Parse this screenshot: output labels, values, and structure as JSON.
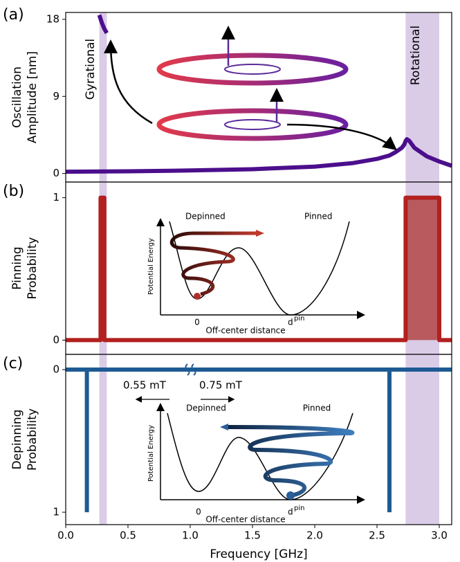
{
  "chart_data": [
    {
      "type": "line",
      "panel_label": "(a)",
      "ylabel": [
        "Oscillation",
        "Amplitude [nm]"
      ],
      "xlim": [
        0,
        3.1
      ],
      "ylim": [
        -1,
        18.8
      ],
      "yticks": [
        0,
        9,
        18
      ],
      "shaded": [
        [
          0.27,
          0.33
        ],
        [
          2.73,
          3.0
        ]
      ],
      "shade_color": "#d6c6e4",
      "annotations": [
        "Gyrational",
        "Rotational"
      ],
      "series": [
        {
          "color": "#4b0f8c",
          "x": [
            0,
            0.5,
            1.0,
            1.5,
            2.0,
            2.3,
            2.5,
            2.6,
            2.65,
            2.7,
            2.72,
            2.73,
            2.74,
            2.76,
            2.8,
            2.9,
            3.0,
            3.1
          ],
          "values": [
            0.2,
            0.25,
            0.35,
            0.5,
            0.8,
            1.2,
            1.7,
            2.1,
            2.5,
            3.0,
            3.4,
            3.8,
            4.0,
            3.8,
            3.0,
            2.0,
            1.4,
            0.9
          ]
        },
        {
          "color": "#4b0f8c",
          "x": [
            0.27,
            0.29,
            0.31,
            0.33
          ],
          "values": [
            18.5,
            17.6,
            16.9,
            16.4
          ]
        }
      ]
    },
    {
      "type": "line",
      "panel_label": "(b)",
      "ylabel": [
        "Pinning",
        "Probability"
      ],
      "xlim": [
        0,
        3.1
      ],
      "ylim": [
        -0.1,
        1.11
      ],
      "yticks": [
        0,
        1
      ],
      "shaded": [
        [
          0.27,
          0.33
        ],
        [
          2.73,
          3.0
        ]
      ],
      "shade_color": "#d6c6e4",
      "inset": {
        "depinned": "Depinned",
        "pinned": "Pinned",
        "ylabel": "Potential Energy",
        "xlabel": "Off-center distance",
        "zero": "0",
        "d": "d",
        "sub": "pin"
      },
      "series": [
        {
          "color": "#b2201f",
          "fill": "#b85a5e",
          "x": [
            0,
            0.28,
            0.28,
            0.31,
            0.31,
            2.73,
            2.73,
            3.0,
            3.0,
            3.1
          ],
          "values": [
            0,
            0,
            1,
            1,
            0,
            0,
            1,
            1,
            0,
            0
          ]
        }
      ]
    },
    {
      "type": "line",
      "panel_label": "(c)",
      "ylabel": [
        "Depinning",
        "Probability"
      ],
      "xlabel": "Frequency [GHz]",
      "xlim": [
        0,
        3.1
      ],
      "ylim": [
        -0.107,
        1.087
      ],
      "invert_y": true,
      "yticks": [
        0,
        1
      ],
      "xticks": [
        {
          "value": 0,
          "label": "0.0"
        },
        0.5,
        {
          "value": 1,
          "label": "1.0"
        },
        1.5,
        {
          "value": 2,
          "label": "2.0"
        },
        2.5,
        {
          "value": 3,
          "label": "3.0"
        }
      ],
      "shaded": [
        [
          0.27,
          0.33
        ],
        [
          2.73,
          3.0
        ]
      ],
      "shade_color": "#d6c6e4",
      "inset": {
        "depinned": "Depinned",
        "pinned": "Pinned",
        "ylabel": "Potential Energy",
        "xlabel": "Off-center distance",
        "zero": "0",
        "d": "d",
        "sub": "pin",
        "field_low": "0.55 mT",
        "field_high": "0.75 mT"
      },
      "series": [
        {
          "color": "#1d5a94",
          "x": [
            0,
            3.1
          ],
          "values": [
            0,
            0
          ]
        },
        {
          "color": "#1d5a94",
          "x": [
            0.17,
            0.17
          ],
          "values": [
            0,
            1
          ]
        },
        {
          "color": "#1d5a94",
          "x": [
            2.6,
            2.6
          ],
          "values": [
            0,
            1
          ]
        }
      ]
    }
  ]
}
